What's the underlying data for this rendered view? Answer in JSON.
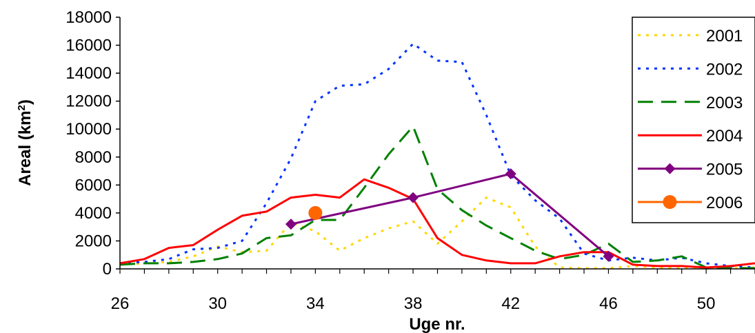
{
  "chart_data": {
    "type": "line",
    "title": "",
    "xlabel": "Uge nr.",
    "ylabel_main": "Areal (km",
    "ylabel_sup": "2",
    "ylabel_close": ")",
    "xlim": [
      26,
      52
    ],
    "ylim": [
      0,
      18000
    ],
    "xticks": [
      26,
      30,
      34,
      38,
      42,
      46,
      50
    ],
    "yticks": [
      0,
      2000,
      4000,
      6000,
      8000,
      10000,
      12000,
      14000,
      16000,
      18000
    ],
    "grid": false,
    "legend_position": "right",
    "series": [
      {
        "name": "2001",
        "color": "#FFD700",
        "style": "dotted",
        "marker": "none",
        "x": [
          26,
          27,
          28,
          29,
          30,
          31,
          32,
          33,
          34,
          35,
          36,
          37,
          38,
          39,
          40,
          41,
          42,
          43,
          44,
          45,
          46,
          47,
          48,
          49,
          50,
          51,
          52
        ],
        "y": [
          300,
          400,
          500,
          900,
          1600,
          1200,
          1300,
          3300,
          2700,
          1300,
          2200,
          2900,
          3400,
          1800,
          3400,
          5100,
          4400,
          1600,
          100,
          50,
          50,
          200,
          100,
          50,
          50,
          50,
          100
        ]
      },
      {
        "name": "2002",
        "color": "#0033FF",
        "style": "dotted",
        "marker": "none",
        "x": [
          26,
          27,
          28,
          29,
          30,
          31,
          32,
          33,
          34,
          35,
          36,
          37,
          38,
          39,
          40,
          41,
          42,
          43,
          44,
          45,
          46,
          47,
          48,
          49,
          50,
          51,
          52
        ],
        "y": [
          400,
          500,
          700,
          1400,
          1500,
          2000,
          4700,
          7900,
          12000,
          13100,
          13200,
          14300,
          16100,
          14900,
          14800,
          11000,
          6700,
          4900,
          3600,
          1100,
          600,
          800,
          600,
          800,
          400,
          200,
          100
        ]
      },
      {
        "name": "2003",
        "color": "#008000",
        "style": "dashed",
        "marker": "none",
        "x": [
          26,
          27,
          28,
          29,
          30,
          31,
          32,
          33,
          34,
          35,
          36,
          37,
          38,
          39,
          40,
          41,
          42,
          43,
          44,
          45,
          46,
          47,
          48,
          49,
          50,
          51,
          52
        ],
        "y": [
          300,
          400,
          400,
          500,
          700,
          1100,
          2200,
          2400,
          3500,
          3500,
          5800,
          8200,
          10200,
          5700,
          4200,
          3100,
          2200,
          1300,
          700,
          1000,
          1800,
          500,
          600,
          900,
          100,
          50,
          50
        ]
      },
      {
        "name": "2004",
        "color": "#FF0000",
        "style": "solid",
        "marker": "none",
        "x": [
          26,
          27,
          28,
          29,
          30,
          31,
          32,
          33,
          34,
          35,
          36,
          37,
          38,
          39,
          40,
          41,
          42,
          43,
          44,
          45,
          46,
          47,
          48,
          49,
          50,
          51,
          52
        ],
        "y": [
          400,
          700,
          1500,
          1700,
          2800,
          3800,
          4100,
          5100,
          5300,
          5100,
          6400,
          5800,
          5000,
          2200,
          1000,
          600,
          400,
          400,
          900,
          1200,
          1200,
          300,
          200,
          200,
          100,
          200,
          400
        ]
      },
      {
        "name": "2005",
        "color": "#800080",
        "style": "solid",
        "marker": "diamond",
        "x": [
          33,
          38,
          42,
          46
        ],
        "y": [
          3200,
          5100,
          6800,
          900
        ]
      },
      {
        "name": "2006",
        "color": "#FF6600",
        "style": "solid",
        "marker": "circle",
        "x": [
          34
        ],
        "y": [
          4000
        ]
      }
    ]
  }
}
